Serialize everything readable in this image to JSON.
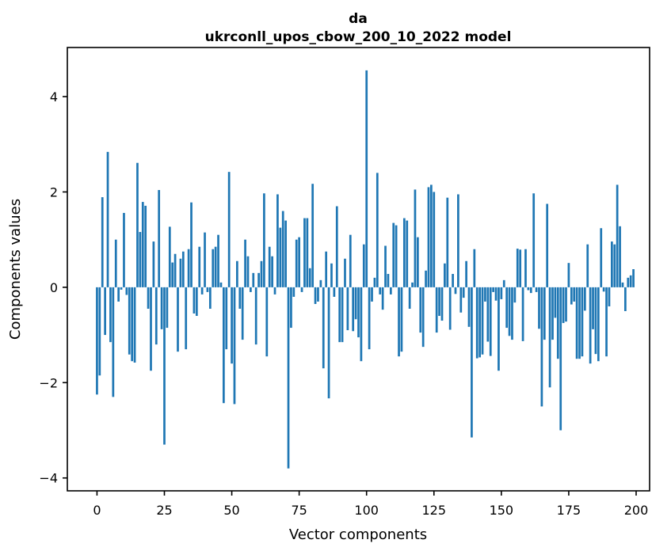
{
  "title": {
    "line1": "da",
    "line2": "ukrconll_upos_cbow_200_10_2022 model"
  },
  "chart_data": {
    "type": "bar",
    "title": "da\nukrconll_upos_cbow_200_10_2022 model",
    "xlabel": "Vector components",
    "ylabel": "Components values",
    "bar_color": "#1f77b4",
    "axis_color": "#000000",
    "background_color": "#ffffff",
    "grid": false,
    "legend": "none",
    "x_range": [
      0,
      199
    ],
    "xlim": [
      -11,
      205
    ],
    "ylim": [
      -4.27,
      5.03
    ],
    "x_ticks": [
      0,
      25,
      50,
      75,
      100,
      125,
      150,
      175,
      200
    ],
    "y_ticks": [
      -4,
      -2,
      0,
      2,
      4
    ],
    "values": [
      -2.25,
      -1.85,
      1.89,
      -1.0,
      2.84,
      -1.15,
      -2.3,
      1.0,
      -0.3,
      -0.05,
      1.56,
      -0.16,
      -1.41,
      -1.55,
      -1.58,
      2.61,
      1.16,
      1.79,
      1.71,
      -0.45,
      -1.75,
      0.96,
      -1.2,
      2.04,
      -0.88,
      -3.3,
      -0.85,
      1.27,
      0.52,
      0.7,
      -1.35,
      0.6,
      0.75,
      -1.3,
      0.8,
      1.78,
      -0.55,
      -0.6,
      0.85,
      -0.15,
      1.15,
      -0.1,
      -0.45,
      0.8,
      0.85,
      1.1,
      0.1,
      -2.43,
      -1.3,
      2.42,
      -1.6,
      -2.45,
      0.55,
      -0.45,
      -1.1,
      1.0,
      0.65,
      -0.1,
      0.3,
      -1.2,
      0.3,
      0.55,
      1.97,
      -1.45,
      0.85,
      0.65,
      -0.15,
      1.95,
      1.25,
      1.6,
      1.4,
      -3.8,
      -0.85,
      -0.2,
      1.0,
      1.05,
      -0.1,
      1.45,
      1.45,
      0.4,
      2.17,
      -0.35,
      -0.3,
      0.15,
      -1.7,
      0.75,
      -2.33,
      0.5,
      -0.2,
      1.7,
      -1.15,
      -1.15,
      0.6,
      -0.9,
      1.1,
      -0.92,
      -0.67,
      -1.05,
      -1.55,
      0.9,
      4.55,
      -1.3,
      -0.3,
      0.2,
      2.4,
      -0.15,
      -0.47,
      0.87,
      0.28,
      -0.15,
      1.35,
      1.3,
      -1.45,
      -1.35,
      1.45,
      1.4,
      -0.45,
      0.1,
      2.05,
      1.05,
      -0.95,
      -1.25,
      0.35,
      2.1,
      2.15,
      2.0,
      -0.95,
      -0.6,
      -0.7,
      0.5,
      1.88,
      -0.89,
      0.28,
      -0.14,
      1.95,
      -0.53,
      -0.22,
      0.55,
      -0.83,
      -3.15,
      0.8,
      -1.49,
      -1.47,
      -1.41,
      -0.3,
      -1.14,
      -1.44,
      -0.1,
      -0.28,
      -1.75,
      -0.25,
      0.15,
      -0.85,
      -1.02,
      -1.1,
      -0.32,
      0.81,
      0.79,
      -1.13,
      0.8,
      -0.06,
      -0.12,
      1.97,
      -0.1,
      -0.87,
      -2.5,
      -1.1,
      1.75,
      -2.1,
      -1.1,
      -0.64,
      -1.5,
      -3.0,
      -0.75,
      -0.72,
      0.51,
      -0.36,
      -0.3,
      -1.5,
      -1.5,
      -1.45,
      -0.49,
      0.9,
      -1.6,
      -0.88,
      -1.4,
      -1.55,
      1.24,
      -0.09,
      -1.45,
      -0.4,
      0.96,
      0.9,
      2.15,
      1.28,
      0.1,
      -0.5,
      0.2,
      0.25,
      0.38
    ]
  }
}
